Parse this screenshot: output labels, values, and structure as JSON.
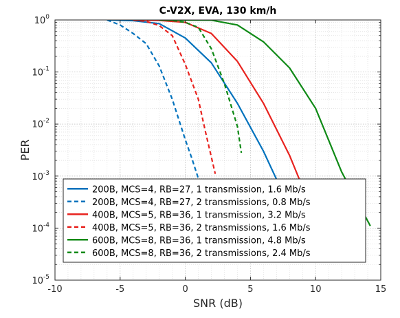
{
  "chart_data": {
    "type": "line",
    "title": "C-V2X, EVA, 130 km/h",
    "xlabel": "SNR (dB)",
    "ylabel": "PER",
    "xlim": [
      -10,
      15
    ],
    "ylim": [
      1e-05,
      1
    ],
    "yscale": "log",
    "grid": true,
    "legend_position": "bottom-left",
    "x_ticks": [
      "-10",
      "-5",
      "0",
      "5",
      "10",
      "15"
    ],
    "y_ticks": [
      {
        "base": "10",
        "exp": "0"
      },
      {
        "base": "10",
        "exp": "-1"
      },
      {
        "base": "10",
        "exp": "-2"
      },
      {
        "base": "10",
        "exp": "-3"
      },
      {
        "base": "10",
        "exp": "-4"
      },
      {
        "base": "10",
        "exp": "-5"
      }
    ],
    "series": [
      {
        "name": "200B, MCS=4, RB=27, 1 transmission, 1.6 Mb/s",
        "color": "#0072BD",
        "dash": "solid",
        "x": [
          -6,
          -4,
          -2,
          0,
          2,
          4,
          6,
          8
        ],
        "y": [
          1.0,
          0.97,
          0.85,
          0.45,
          0.15,
          0.025,
          0.003,
          0.00025
        ]
      },
      {
        "name": "200B, MCS=4, RB=27, 2 transmissions, 0.8 Mb/s",
        "color": "#0072BD",
        "dash": "dashed",
        "x": [
          -6,
          -5,
          -4,
          -3,
          -2,
          -1,
          0,
          0.5,
          1
        ],
        "y": [
          1.0,
          0.8,
          0.55,
          0.35,
          0.13,
          0.03,
          0.005,
          0.0022,
          0.0009
        ]
      },
      {
        "name": "400B, MCS=5, RB=36, 1 transmission, 3.2 Mb/s",
        "color": "#E8231F",
        "dash": "solid",
        "x": [
          -4,
          -2,
          0,
          2,
          4,
          6,
          8,
          10
        ],
        "y": [
          1.0,
          0.98,
          0.9,
          0.55,
          0.16,
          0.025,
          0.0025,
          0.00015
        ]
      },
      {
        "name": "400B, MCS=5, RB=36, 2 transmissions, 1.6 Mb/s",
        "color": "#E8231F",
        "dash": "dashed",
        "x": [
          -4,
          -3,
          -2,
          -1,
          0,
          1,
          1.5,
          2.3
        ],
        "y": [
          1.0,
          0.94,
          0.78,
          0.5,
          0.14,
          0.03,
          0.008,
          0.0011
        ]
      },
      {
        "name": "600B, MCS=8, RB=36, 1 transmission, 4.8 Mb/s",
        "color": "#0F8A16",
        "dash": "solid",
        "x": [
          -2,
          2,
          4,
          6,
          8,
          10,
          12,
          14.2
        ],
        "y": [
          1.0,
          0.99,
          0.8,
          0.38,
          0.12,
          0.02,
          0.0012,
          0.00011
        ]
      },
      {
        "name": "600B, MCS=8, RB=36, 2 transmissions, 2.4 Mb/s",
        "color": "#0F8A16",
        "dash": "dashed",
        "x": [
          -2,
          -1,
          0,
          1,
          2,
          3,
          4,
          4.3
        ],
        "y": [
          1.0,
          0.98,
          0.9,
          0.72,
          0.28,
          0.06,
          0.009,
          0.0028
        ]
      }
    ]
  }
}
